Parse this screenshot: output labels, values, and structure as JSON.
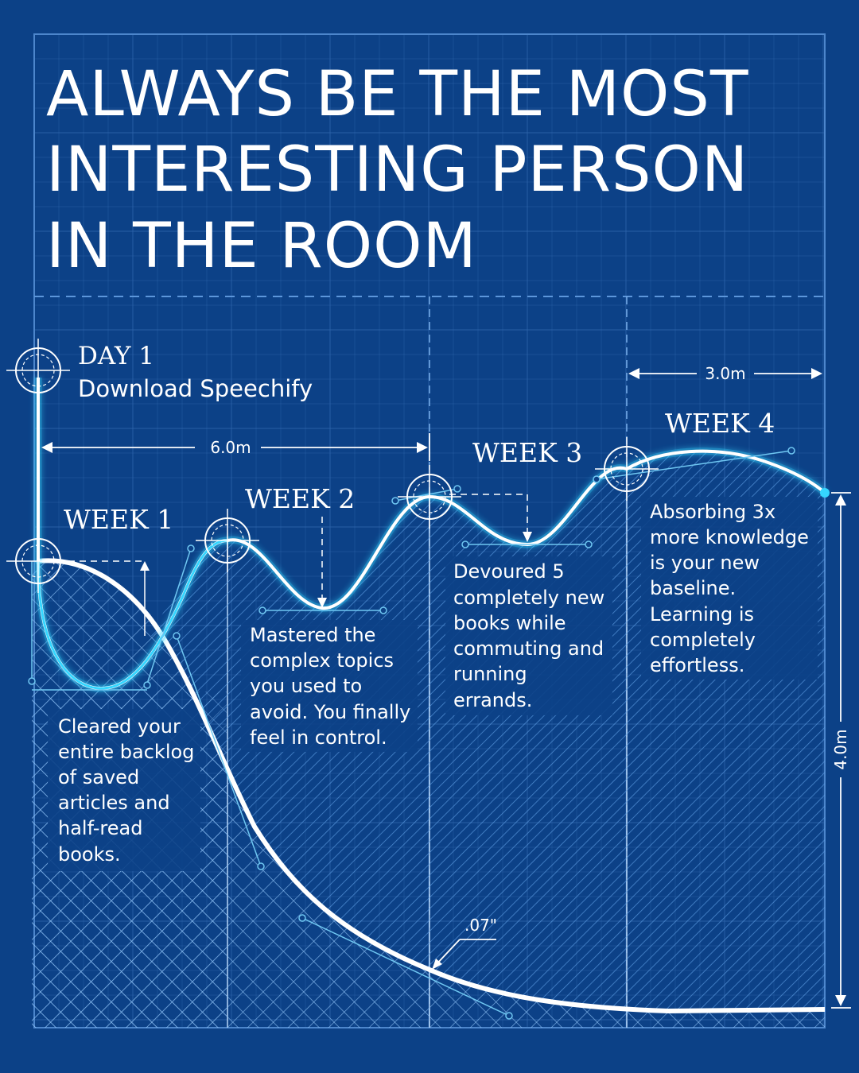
{
  "title": {
    "lines": [
      "ALWAYS BE THE MOST",
      "INTERESTING PERSON",
      "IN THE ROOM"
    ]
  },
  "start": {
    "day": "DAY 1",
    "action": "Download Speechify"
  },
  "weeks": [
    {
      "label": "WEEK 1",
      "note": [
        "Cleared your",
        "entire backlog",
        "of saved",
        "articles and",
        "half-read",
        "books."
      ]
    },
    {
      "label": "WEEK 2",
      "note": [
        "Mastered the",
        "complex topics",
        "you used to",
        "avoid. You finally",
        "feel in control."
      ]
    },
    {
      "label": "WEEK 3",
      "note": [
        "Devoured 5",
        "completely new",
        "books while",
        "commuting and",
        "running",
        "errands."
      ]
    },
    {
      "label": "WEEK 4",
      "note": [
        "Absorbing 3x",
        "more knowledge",
        "is your new",
        "baseline.",
        "Learning is",
        "completely",
        "effortless."
      ]
    }
  ],
  "dimensions": {
    "span_weeks_1_3": "6.0m",
    "span_week_4": "3.0m",
    "height": "4.0m",
    "tolerance": ".07\""
  },
  "colors": {
    "background": "#0c4187",
    "line": "#ffffff",
    "accent": "#35d6ff",
    "grid": "#3f78bf"
  }
}
